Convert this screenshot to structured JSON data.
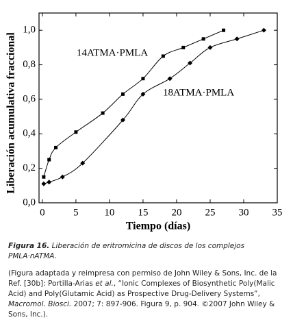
{
  "chart_data": {
    "type": "line",
    "xlabel": "Tiempo (días)",
    "ylabel": "Liberación acumulativa fraccional",
    "xlim": [
      -0.5,
      35
    ],
    "xticks": [
      0,
      5,
      10,
      15,
      20,
      25,
      30,
      35
    ],
    "ylim": [
      0,
      1.1
    ],
    "yticks": [
      {
        "value": 0,
        "label": "0,0"
      },
      {
        "value": 0.2,
        "label": "0,2"
      },
      {
        "value": 0.4,
        "label": "0,4"
      },
      {
        "value": 0.6,
        "label": "0,6"
      },
      {
        "value": 0.8,
        "label": "0,8"
      },
      {
        "value": 1.0,
        "label": "1,0"
      }
    ],
    "series": [
      {
        "name": "14ATMA·PMLA",
        "color": "#000000",
        "marker": "square",
        "x": [
          0.2,
          1,
          2,
          5,
          9,
          12,
          15,
          18,
          21,
          24,
          27
        ],
        "values": [
          0.15,
          0.25,
          0.32,
          0.41,
          0.52,
          0.63,
          0.72,
          0.85,
          0.9,
          0.95,
          1.0
        ]
      },
      {
        "name": "18ATMA·PMLA",
        "color": "#000000",
        "marker": "diamond",
        "x": [
          0.2,
          1,
          3,
          6,
          12,
          15,
          19,
          22,
          25,
          29,
          33
        ],
        "values": [
          0.11,
          0.12,
          0.15,
          0.23,
          0.48,
          0.63,
          0.72,
          0.81,
          0.9,
          0.95,
          1.0
        ]
      }
    ]
  },
  "caption": {
    "label": "Figura 16.",
    "text": "Liberación de eritromicina de discos de los complejos PMLA·nATMA.",
    "credit": [
      {
        "text": "(Figura adaptada y reimpresa con permiso de John Wiley & Sons, Inc. de la Ref. [30b]: Portilla-Arias ",
        "italic": false
      },
      {
        "text": "et al.",
        "italic": true
      },
      {
        "text": ", “Ionic Complexes of Biosynthetic Poly(Malic Acid) and Poly(Glutamic Acid) as Prospective Drug-Delivery Systems”, ",
        "italic": false
      },
      {
        "text": "Macromol. Biosci.",
        "italic": true
      },
      {
        "text": " 2007; 7: 897-906. Figura 9, p. 904. ©2007 John Wiley & Sons, Inc.).",
        "italic": false
      }
    ]
  }
}
